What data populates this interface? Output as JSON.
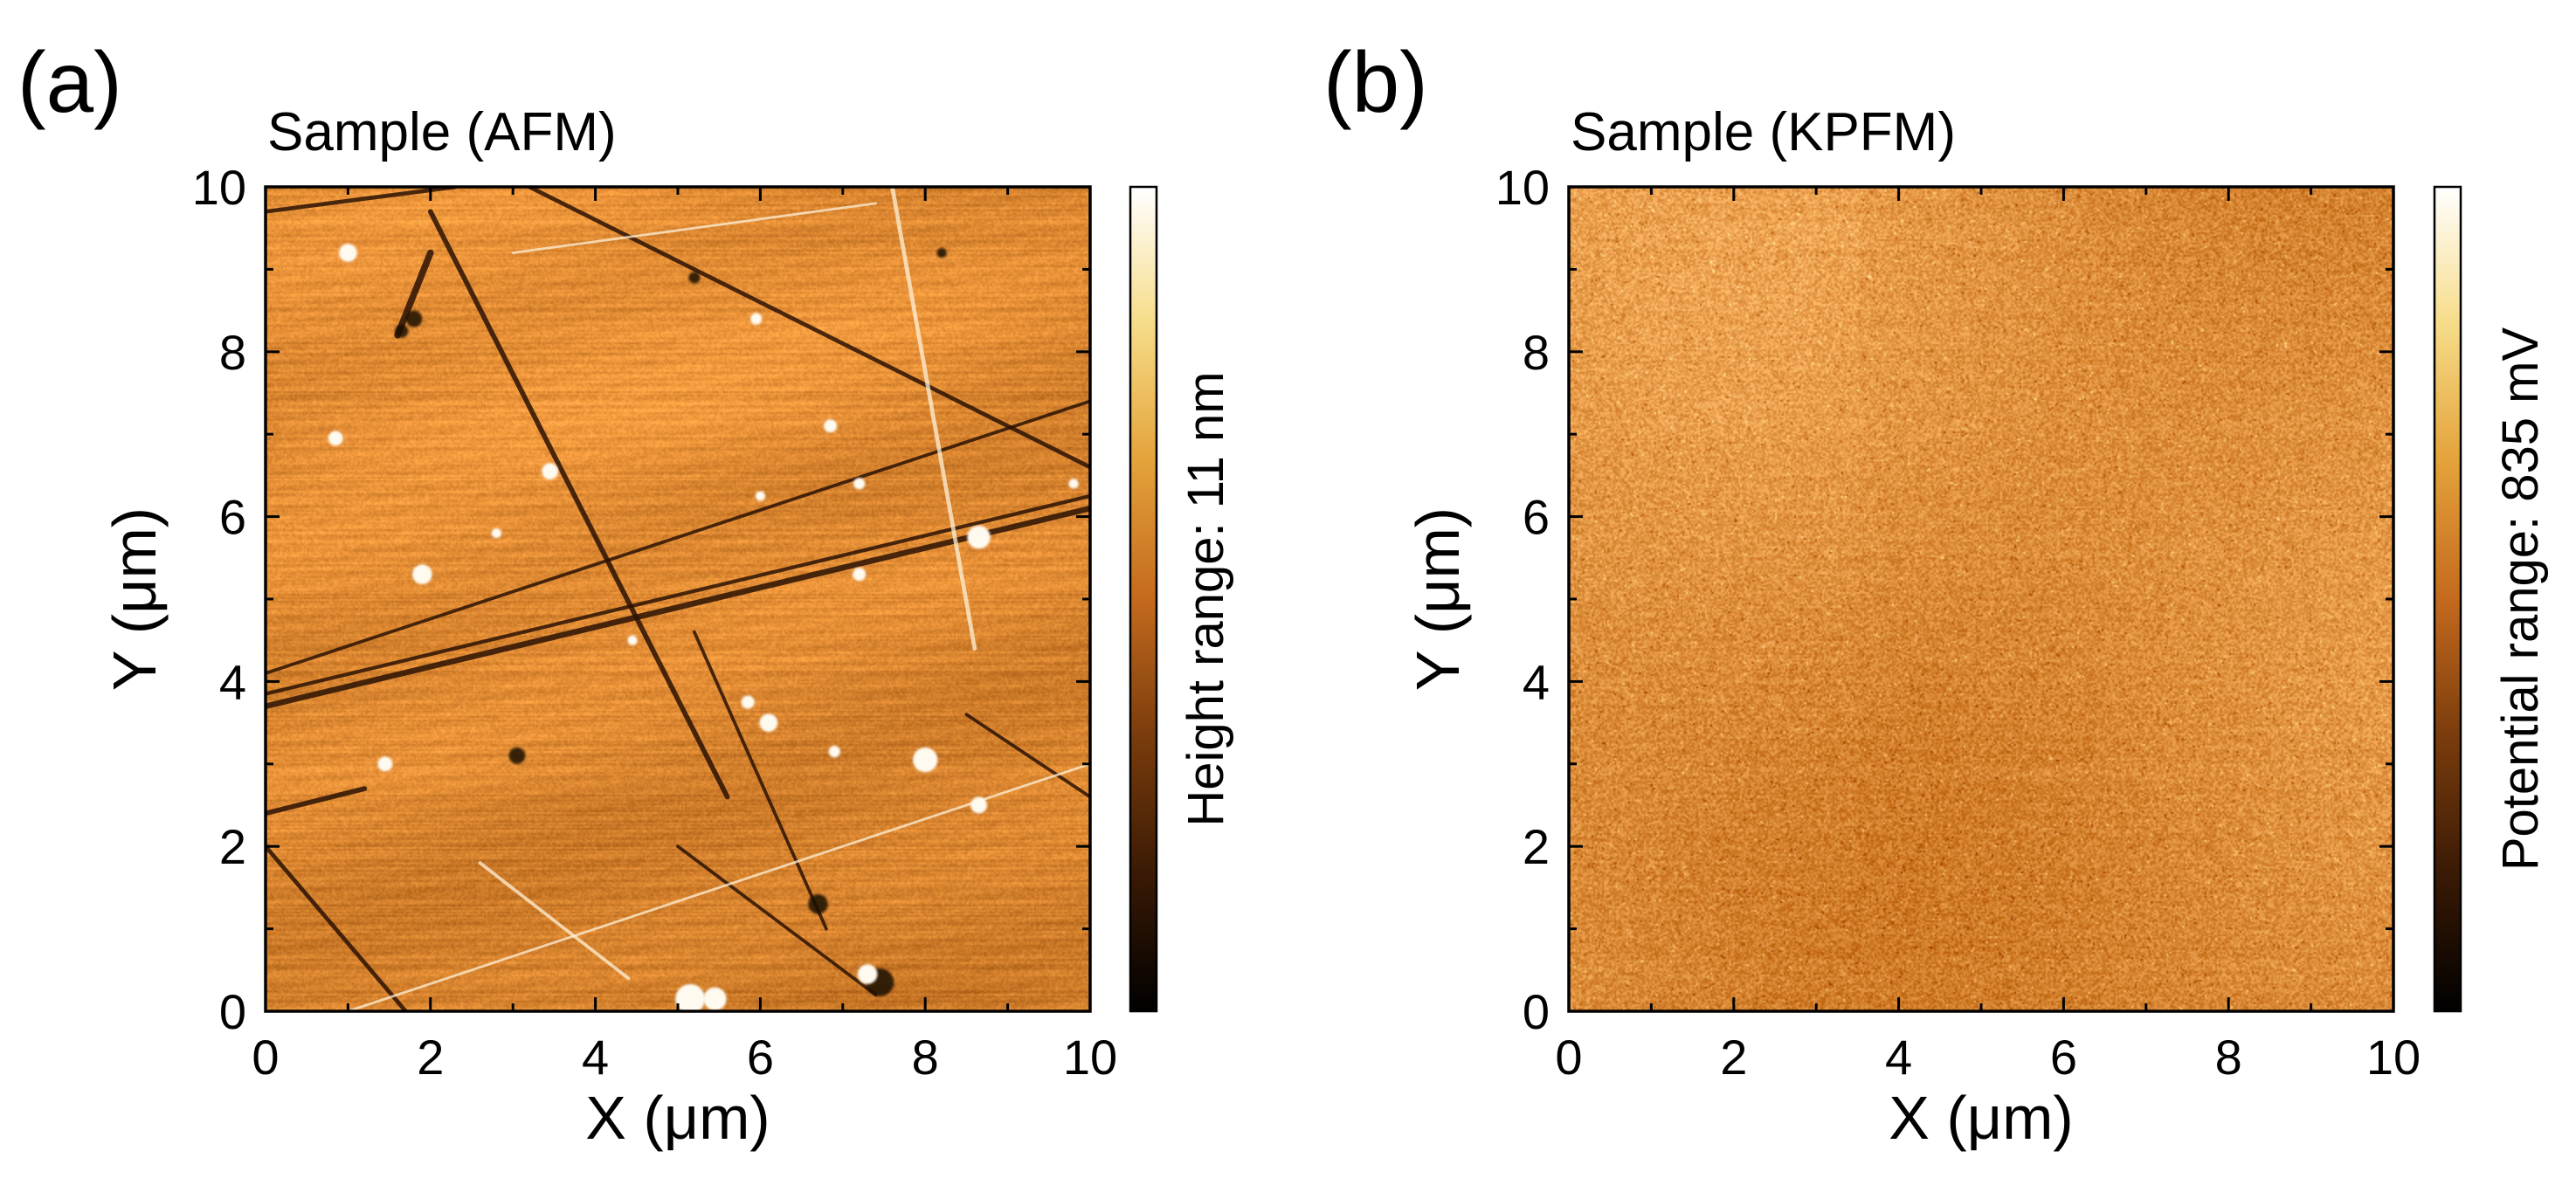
{
  "colors": {
    "colormap": [
      "#000000",
      "#3a1a05",
      "#7a3c0c",
      "#c46a1e",
      "#e4a23a",
      "#f6dc88",
      "#ffffff"
    ],
    "afm_base": "#d9852f",
    "kpfm_base": "#db8a36",
    "axis": "#000000"
  },
  "chart_data": [
    {
      "type": "heatmap",
      "panel_letter": "(a)",
      "title": "Sample (AFM)",
      "xlabel": "X (μm)",
      "ylabel": "Y (μm)",
      "xlim": [
        0,
        10
      ],
      "ylim": [
        0,
        10
      ],
      "xticks": [
        "0",
        "2",
        "4",
        "6",
        "8",
        "10"
      ],
      "yticks": [
        "0",
        "2",
        "4",
        "6",
        "8",
        "10"
      ],
      "colorbar_label": "Height range: 11 nm",
      "texture": "afm",
      "scratches": [
        {
          "x1": 2.0,
          "y1": 9.7,
          "x2": 5.6,
          "y2": 2.6,
          "width": 0.06,
          "shade": "dark"
        },
        {
          "x1": 3.2,
          "y1": 10.0,
          "x2": 10.0,
          "y2": 6.6,
          "width": 0.05,
          "shade": "dark"
        },
        {
          "x1": 0.0,
          "y1": 3.7,
          "x2": 10.0,
          "y2": 6.1,
          "width": 0.07,
          "shade": "dark"
        },
        {
          "x1": 0.0,
          "y1": 3.85,
          "x2": 10.0,
          "y2": 6.25,
          "width": 0.045,
          "shade": "dark"
        },
        {
          "x1": 0.0,
          "y1": 4.1,
          "x2": 10.0,
          "y2": 7.4,
          "width": 0.04,
          "shade": "dark"
        },
        {
          "x1": 0.0,
          "y1": 9.7,
          "x2": 2.3,
          "y2": 10.0,
          "width": 0.05,
          "shade": "dark"
        },
        {
          "x1": 0.0,
          "y1": 2.0,
          "x2": 1.7,
          "y2": 0.0,
          "width": 0.05,
          "shade": "dark"
        },
        {
          "x1": 5.2,
          "y1": 4.6,
          "x2": 6.8,
          "y2": 1.0,
          "width": 0.04,
          "shade": "dark"
        },
        {
          "x1": 1.6,
          "y1": 8.2,
          "x2": 2.0,
          "y2": 9.2,
          "width": 0.08,
          "shade": "dark"
        },
        {
          "x1": 0.0,
          "y1": 2.4,
          "x2": 1.2,
          "y2": 2.7,
          "width": 0.06,
          "shade": "dark"
        },
        {
          "x1": 8.5,
          "y1": 3.6,
          "x2": 10.0,
          "y2": 2.6,
          "width": 0.04,
          "shade": "dark"
        },
        {
          "x1": 5.0,
          "y1": 2.0,
          "x2": 7.4,
          "y2": 0.2,
          "width": 0.04,
          "shade": "dark"
        },
        {
          "x1": 7.6,
          "y1": 10.0,
          "x2": 8.6,
          "y2": 4.4,
          "width": 0.05,
          "shade": "light"
        },
        {
          "x1": 2.6,
          "y1": 1.8,
          "x2": 4.4,
          "y2": 0.4,
          "width": 0.04,
          "shade": "light"
        },
        {
          "x1": 1.0,
          "y1": 0.0,
          "x2": 10.0,
          "y2": 3.0,
          "width": 0.03,
          "shade": "light"
        },
        {
          "x1": 3.0,
          "y1": 9.2,
          "x2": 7.4,
          "y2": 9.8,
          "width": 0.03,
          "shade": "light"
        }
      ],
      "particles": [
        {
          "x": 1.0,
          "y": 9.2,
          "r": 0.11
        },
        {
          "x": 0.85,
          "y": 6.95,
          "r": 0.09
        },
        {
          "x": 3.45,
          "y": 6.55,
          "r": 0.1
        },
        {
          "x": 1.9,
          "y": 5.3,
          "r": 0.12
        },
        {
          "x": 7.2,
          "y": 5.3,
          "r": 0.08
        },
        {
          "x": 8.65,
          "y": 5.75,
          "r": 0.14
        },
        {
          "x": 7.2,
          "y": 6.4,
          "r": 0.07
        },
        {
          "x": 6.0,
          "y": 6.25,
          "r": 0.06
        },
        {
          "x": 6.85,
          "y": 7.1,
          "r": 0.08
        },
        {
          "x": 8.0,
          "y": 3.05,
          "r": 0.15
        },
        {
          "x": 8.65,
          "y": 2.5,
          "r": 0.1
        },
        {
          "x": 6.1,
          "y": 3.5,
          "r": 0.11
        },
        {
          "x": 5.85,
          "y": 3.75,
          "r": 0.08
        },
        {
          "x": 1.45,
          "y": 3.0,
          "r": 0.09
        },
        {
          "x": 5.15,
          "y": 0.15,
          "r": 0.18
        },
        {
          "x": 5.45,
          "y": 0.15,
          "r": 0.14
        },
        {
          "x": 7.3,
          "y": 0.45,
          "r": 0.12
        },
        {
          "x": 5.95,
          "y": 8.4,
          "r": 0.07
        },
        {
          "x": 4.45,
          "y": 4.5,
          "r": 0.06
        },
        {
          "x": 2.8,
          "y": 5.8,
          "r": 0.06
        },
        {
          "x": 9.8,
          "y": 6.4,
          "r": 0.06
        },
        {
          "x": 6.9,
          "y": 3.15,
          "r": 0.07
        }
      ],
      "dark_spots": [
        {
          "x": 7.45,
          "y": 0.35,
          "r": 0.17
        },
        {
          "x": 6.7,
          "y": 1.3,
          "r": 0.12
        },
        {
          "x": 3.05,
          "y": 3.1,
          "r": 0.1
        },
        {
          "x": 1.8,
          "y": 8.4,
          "r": 0.1
        },
        {
          "x": 1.65,
          "y": 8.25,
          "r": 0.08
        },
        {
          "x": 5.2,
          "y": 8.9,
          "r": 0.07
        },
        {
          "x": 8.2,
          "y": 9.2,
          "r": 0.06
        }
      ]
    },
    {
      "type": "heatmap",
      "panel_letter": "(b)",
      "title": "Sample (KPFM)",
      "xlabel": "X (μm)",
      "ylabel": "Y (μm)",
      "xlim": [
        0,
        10
      ],
      "ylim": [
        0,
        10
      ],
      "xticks": [
        "0",
        "2",
        "4",
        "6",
        "8",
        "10"
      ],
      "yticks": [
        "0",
        "2",
        "4",
        "6",
        "8",
        "10"
      ],
      "colorbar_label": "Potential range: 835 mV",
      "texture": "kpfm",
      "scratches": [],
      "particles": [],
      "dark_spots": []
    }
  ]
}
